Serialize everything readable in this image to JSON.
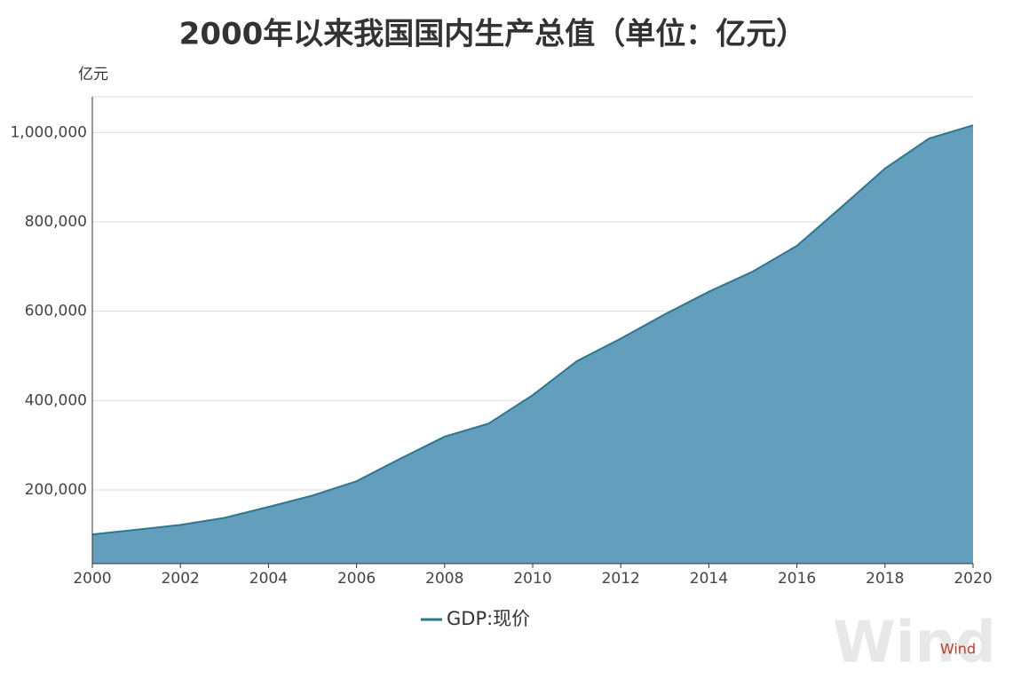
{
  "chart_data": {
    "type": "area",
    "title": "2000年以来我国国内生产总值（单位：亿元）",
    "y_label": "亿元",
    "x": [
      2000,
      2001,
      2002,
      2003,
      2004,
      2005,
      2006,
      2007,
      2008,
      2009,
      2010,
      2011,
      2012,
      2013,
      2014,
      2015,
      2016,
      2017,
      2018,
      2019,
      2020
    ],
    "series": [
      {
        "name": "GDP:现价",
        "color": "#2e7590",
        "fill": "#639fbc",
        "values": [
          100280,
          110863,
          121717,
          137422,
          161840,
          187319,
          219438,
          270092,
          319245,
          348518,
          412119,
          487940,
          538580,
          592963,
          643563,
          688858,
          746395,
          832036,
          919281,
          986515,
          1015986
        ]
      }
    ],
    "xlim": [
      2000,
      2020
    ],
    "xticks": [
      2000,
      2002,
      2004,
      2006,
      2008,
      2010,
      2012,
      2014,
      2016,
      2018,
      2020
    ],
    "ylim": [
      35000,
      1080000
    ],
    "yticks": [
      {
        "value": 200000,
        "label": "200,000"
      },
      {
        "value": 400000,
        "label": "400,000"
      },
      {
        "value": 600000,
        "label": "600,000"
      },
      {
        "value": 800000,
        "label": "800,000"
      },
      {
        "value": 1000000,
        "label": "1,000,000"
      }
    ],
    "grid": true,
    "legend": "bottom",
    "watermark": "Wind"
  }
}
